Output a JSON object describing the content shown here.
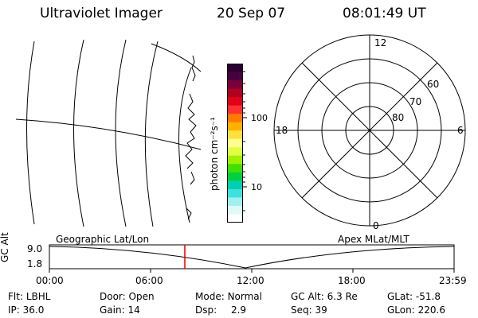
{
  "header": {
    "title": "Ultraviolet Imager",
    "date": "20 Sep 07",
    "time": "08:01:49 UT"
  },
  "colorbar": {
    "unit_label": "photon cm⁻²s⁻¹",
    "ticks": [
      "100",
      "10"
    ],
    "colors": [
      "#2a0030",
      "#4a0040",
      "#7a003a",
      "#b00020",
      "#e00018",
      "#ff3030",
      "#ff7a00",
      "#ffb000",
      "#ffe040",
      "#ffff90",
      "#e0ff40",
      "#a0f000",
      "#40e000",
      "#00d040",
      "#00d0b0",
      "#40e0e0",
      "#a0f0f0",
      "#e0f8f8",
      "#ffffff"
    ]
  },
  "polar_plot": {
    "mlt_labels": {
      "top": "12",
      "left": "18",
      "right": "6",
      "bottom": "0"
    },
    "lat_labels": [
      "60",
      "70",
      "80"
    ]
  },
  "timeline": {
    "y_axis_label": "GC Alt",
    "y_ticks": [
      "9.0",
      "1.8"
    ],
    "left_label": "Geographic Lat/Lon",
    "right_label": "Apex MLat/MLT",
    "x_ticks": [
      "00:00",
      "06:00",
      "12:00",
      "18:00",
      "23:59"
    ],
    "marker_color": "#e00000"
  },
  "footer": {
    "row1": [
      {
        "label": "Flt:",
        "value": "LBHL"
      },
      {
        "label": "Door:",
        "value": "Open"
      },
      {
        "label": "Mode:",
        "value": "Normal"
      },
      {
        "label": "GC Alt:",
        "value": "6.3 Re"
      },
      {
        "label": "GLat:",
        "value": "-51.8"
      }
    ],
    "row2": [
      {
        "label": "IP:",
        "value": "36.0"
      },
      {
        "label": "Gain:",
        "value": "14"
      },
      {
        "label": "Dsp:",
        "value": "2.9"
      },
      {
        "label": "Seq:",
        "value": "39"
      },
      {
        "label": "GLon:",
        "value": "220.6"
      }
    ]
  }
}
